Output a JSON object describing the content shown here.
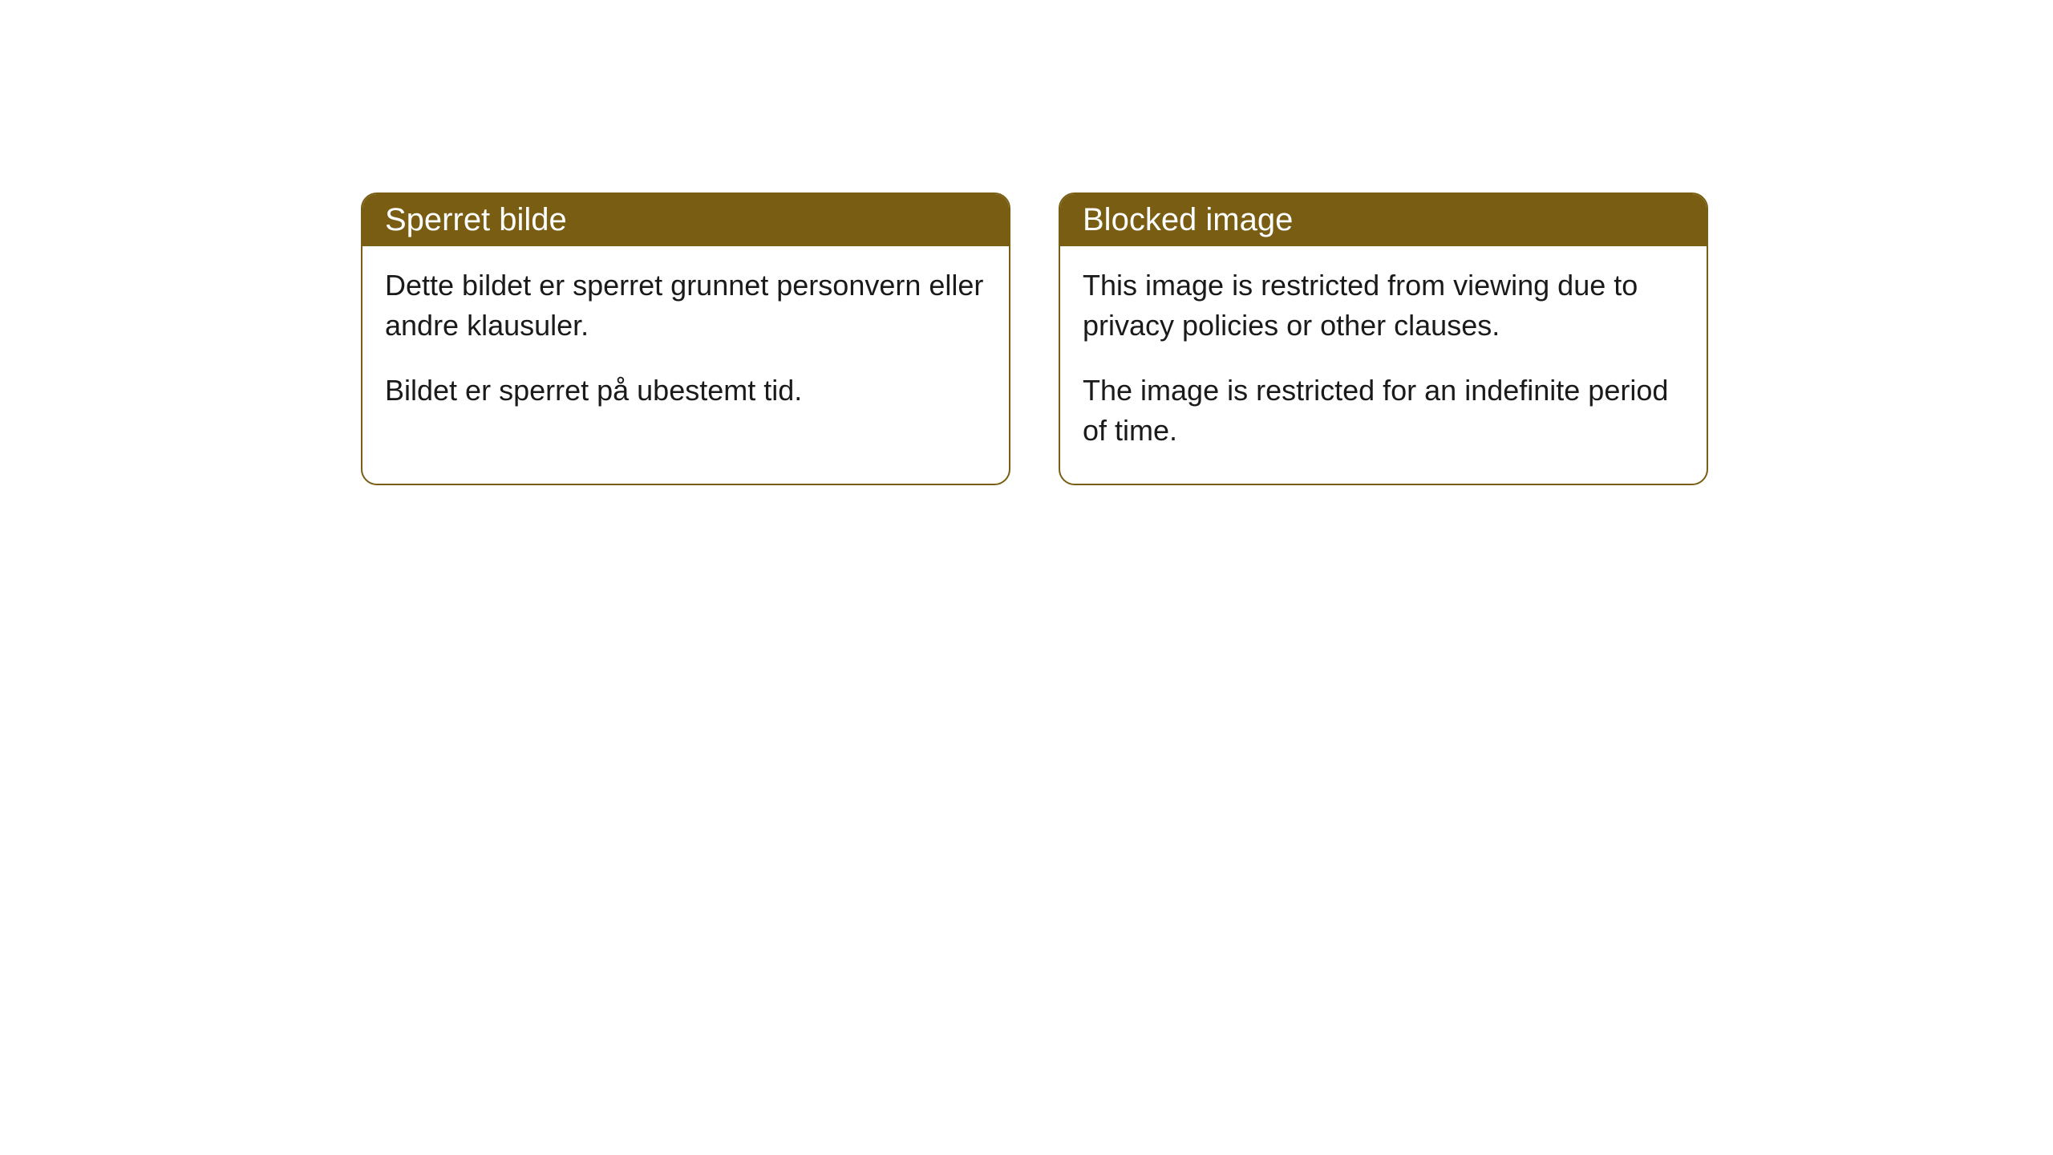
{
  "cards": [
    {
      "title": "Sperret bilde",
      "paragraph1": "Dette bildet er sperret grunnet personvern eller andre klausuler.",
      "paragraph2": "Bildet er sperret på ubestemt tid."
    },
    {
      "title": "Blocked image",
      "paragraph1": "This image is restricted from viewing due to privacy policies or other clauses.",
      "paragraph2": "The image is restricted for an indefinite period of time."
    }
  ],
  "styling": {
    "header_bg_color": "#785d13",
    "header_text_color": "#ffffff",
    "border_color": "#785d13",
    "body_text_color": "#1a1a1a",
    "body_bg_color": "#ffffff",
    "page_bg_color": "#ffffff",
    "border_radius": 20,
    "header_fontsize": 40,
    "body_fontsize": 36
  }
}
